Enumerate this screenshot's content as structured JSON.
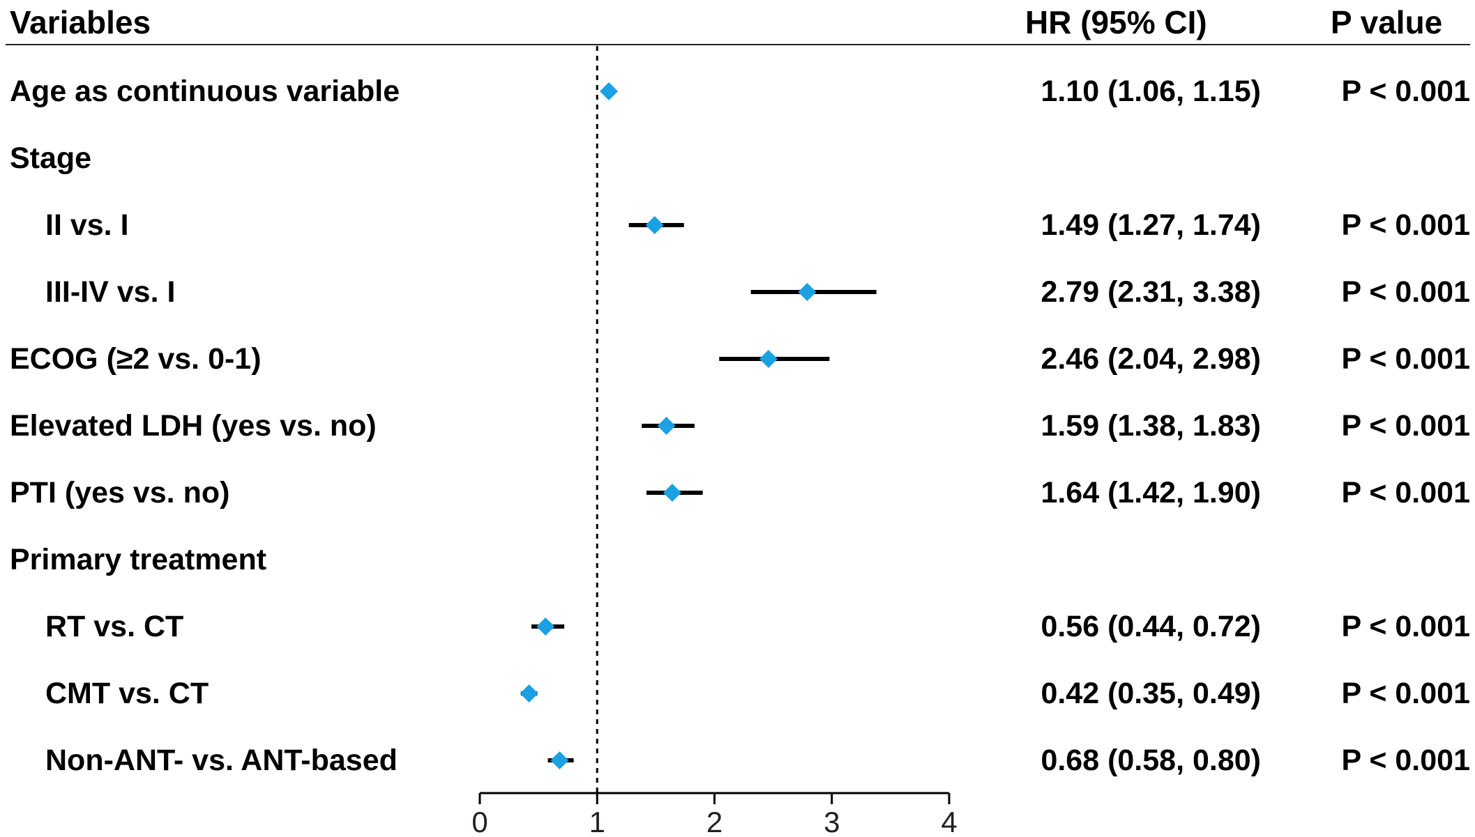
{
  "chart_data": {
    "type": "forest",
    "columns": {
      "variables": "Variables",
      "hr": "HR (95% CI)",
      "p": "P value"
    },
    "rows": [
      {
        "label": "Age as continuous variable",
        "indent": false,
        "hr": 1.1,
        "lo": 1.06,
        "hi": 1.15,
        "hr_text": "1.10 (1.06, 1.15)",
        "p_text": "P < 0.001"
      },
      {
        "label": "Stage",
        "indent": false,
        "heading": true
      },
      {
        "label": "II vs. I",
        "indent": true,
        "hr": 1.49,
        "lo": 1.27,
        "hi": 1.74,
        "hr_text": "1.49 (1.27, 1.74)",
        "p_text": "P < 0.001"
      },
      {
        "label": "III-IV vs. I",
        "indent": true,
        "hr": 2.79,
        "lo": 2.31,
        "hi": 3.38,
        "hr_text": "2.79 (2.31, 3.38)",
        "p_text": "P < 0.001"
      },
      {
        "label": "ECOG (≥2 vs. 0-1)",
        "indent": false,
        "hr": 2.46,
        "lo": 2.04,
        "hi": 2.98,
        "hr_text": "2.46 (2.04, 2.98)",
        "p_text": "P < 0.001"
      },
      {
        "label": "Elevated LDH (yes vs. no)",
        "indent": false,
        "hr": 1.59,
        "lo": 1.38,
        "hi": 1.83,
        "hr_text": "1.59 (1.38, 1.83)",
        "p_text": "P < 0.001"
      },
      {
        "label": "PTI (yes vs. no)",
        "indent": false,
        "hr": 1.64,
        "lo": 1.42,
        "hi": 1.9,
        "hr_text": "1.64 (1.42, 1.90)",
        "p_text": "P < 0.001"
      },
      {
        "label": "Primary treatment",
        "indent": false,
        "heading": true
      },
      {
        "label": "RT vs. CT",
        "indent": true,
        "hr": 0.56,
        "lo": 0.44,
        "hi": 0.72,
        "hr_text": "0.56 (0.44, 0.72)",
        "p_text": "P < 0.001"
      },
      {
        "label": "CMT vs. CT",
        "indent": true,
        "hr": 0.42,
        "lo": 0.35,
        "hi": 0.49,
        "hr_text": "0.42 (0.35, 0.49)",
        "p_text": "P < 0.001"
      },
      {
        "label": "Non-ANT- vs. ANT-based",
        "indent": true,
        "hr": 0.68,
        "lo": 0.58,
        "hi": 0.8,
        "hr_text": "0.68 (0.58, 0.80)",
        "p_text": "P < 0.001"
      }
    ],
    "x_ticks": [
      0,
      1,
      2,
      3,
      4
    ],
    "xlim": [
      0,
      4
    ],
    "reference_line": 1,
    "marker_color": "#1ba1e2",
    "ci_color": "#000000"
  }
}
